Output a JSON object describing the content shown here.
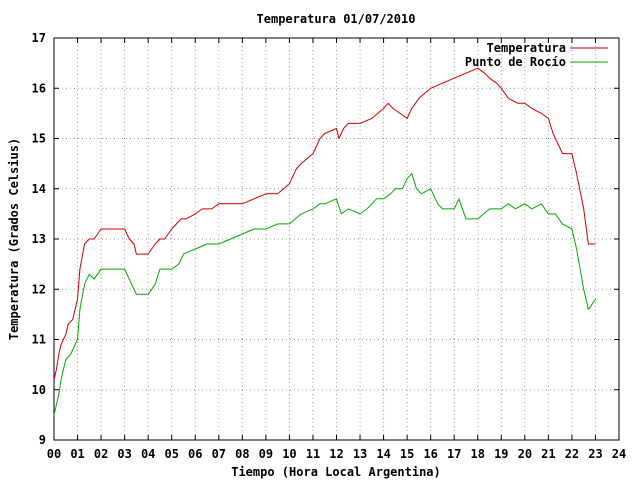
{
  "chart_data": {
    "type": "line",
    "title": "Temperatura 01/07/2010",
    "xlabel": "Tiempo (Hora Local Argentina)",
    "ylabel": "Temperatura (Grados Celsius)",
    "xlim": [
      0,
      24
    ],
    "ylim": [
      9,
      17
    ],
    "x_ticks": [
      "00",
      "01",
      "02",
      "03",
      "04",
      "05",
      "06",
      "07",
      "08",
      "09",
      "10",
      "11",
      "12",
      "13",
      "14",
      "15",
      "16",
      "17",
      "18",
      "19",
      "20",
      "21",
      "22",
      "23",
      "24"
    ],
    "y_ticks": [
      "9",
      "10",
      "11",
      "12",
      "13",
      "14",
      "15",
      "16",
      "17"
    ],
    "grid": true,
    "legend_position": "top-right",
    "series": [
      {
        "name": "Temperatura",
        "color": "#cc0000",
        "x": [
          0.0,
          0.1,
          0.2,
          0.3,
          0.4,
          0.5,
          0.6,
          0.8,
          1.0,
          1.1,
          1.3,
          1.5,
          1.7,
          2.0,
          2.5,
          3.0,
          3.2,
          3.4,
          3.5,
          4.0,
          4.3,
          4.5,
          4.7,
          5.0,
          5.2,
          5.4,
          5.6,
          6.0,
          6.3,
          6.7,
          7.0,
          7.5,
          8.0,
          8.5,
          9.0,
          9.5,
          10.0,
          10.3,
          10.5,
          11.0,
          11.3,
          11.5,
          12.0,
          12.1,
          12.3,
          12.5,
          12.7,
          13.0,
          13.5,
          14.0,
          14.2,
          14.4,
          14.7,
          15.0,
          15.2,
          15.5,
          16.0,
          16.5,
          17.0,
          17.5,
          18.0,
          18.3,
          18.5,
          18.8,
          19.0,
          19.3,
          19.7,
          20.0,
          20.3,
          20.7,
          21.0,
          21.2,
          21.4,
          21.6,
          22.0,
          22.2,
          22.5,
          22.7,
          23.0
        ],
        "values": [
          10.2,
          10.4,
          10.7,
          10.9,
          11.0,
          11.1,
          11.3,
          11.4,
          11.8,
          12.4,
          12.9,
          13.0,
          13.0,
          13.2,
          13.2,
          13.2,
          13.0,
          12.9,
          12.7,
          12.7,
          12.9,
          13.0,
          13.0,
          13.2,
          13.3,
          13.4,
          13.4,
          13.5,
          13.6,
          13.6,
          13.7,
          13.7,
          13.7,
          13.8,
          13.9,
          13.9,
          14.1,
          14.4,
          14.5,
          14.7,
          15.0,
          15.1,
          15.2,
          15.0,
          15.2,
          15.3,
          15.3,
          15.3,
          15.4,
          15.6,
          15.7,
          15.6,
          15.5,
          15.4,
          15.6,
          15.8,
          16.0,
          16.1,
          16.2,
          16.3,
          16.4,
          16.3,
          16.2,
          16.1,
          16.0,
          15.8,
          15.7,
          15.7,
          15.6,
          15.5,
          15.4,
          15.1,
          14.9,
          14.7,
          14.7,
          14.3,
          13.6,
          12.9,
          12.9
        ]
      },
      {
        "name": "Punto de Rocío",
        "color": "#00aa00",
        "x": [
          0.0,
          0.1,
          0.2,
          0.3,
          0.4,
          0.5,
          0.7,
          1.0,
          1.1,
          1.3,
          1.5,
          1.7,
          2.0,
          2.5,
          3.0,
          3.2,
          3.4,
          3.5,
          4.0,
          4.3,
          4.5,
          5.0,
          5.3,
          5.5,
          6.0,
          6.5,
          7.0,
          7.5,
          8.0,
          8.5,
          9.0,
          9.5,
          10.0,
          10.5,
          11.0,
          11.3,
          11.5,
          12.0,
          12.2,
          12.5,
          13.0,
          13.3,
          13.7,
          14.0,
          14.3,
          14.5,
          14.8,
          15.0,
          15.2,
          15.4,
          15.6,
          16.0,
          16.3,
          16.5,
          17.0,
          17.2,
          17.5,
          18.0,
          18.5,
          19.0,
          19.3,
          19.6,
          20.0,
          20.3,
          20.7,
          21.0,
          21.3,
          21.6,
          22.0,
          22.2,
          22.5,
          22.7,
          23.0
        ],
        "values": [
          9.5,
          9.7,
          9.9,
          10.2,
          10.4,
          10.6,
          10.7,
          11.0,
          11.6,
          12.1,
          12.3,
          12.2,
          12.4,
          12.4,
          12.4,
          12.2,
          12.0,
          11.9,
          11.9,
          12.1,
          12.4,
          12.4,
          12.5,
          12.7,
          12.8,
          12.9,
          12.9,
          13.0,
          13.1,
          13.2,
          13.2,
          13.3,
          13.3,
          13.5,
          13.6,
          13.7,
          13.7,
          13.8,
          13.5,
          13.6,
          13.5,
          13.6,
          13.8,
          13.8,
          13.9,
          14.0,
          14.0,
          14.2,
          14.3,
          14.0,
          13.9,
          14.0,
          13.7,
          13.6,
          13.6,
          13.8,
          13.4,
          13.4,
          13.6,
          13.6,
          13.7,
          13.6,
          13.7,
          13.6,
          13.7,
          13.5,
          13.5,
          13.3,
          13.2,
          12.8,
          12.0,
          11.6,
          11.8
        ]
      }
    ]
  }
}
